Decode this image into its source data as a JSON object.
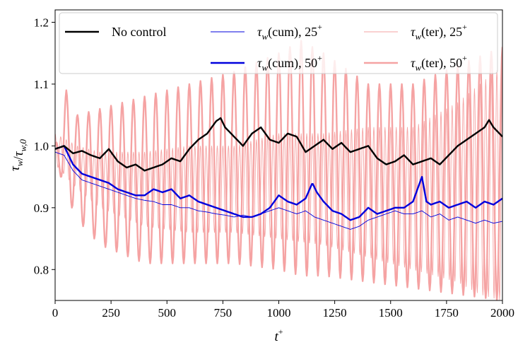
{
  "chart_data": {
    "type": "line",
    "xlabel": "t",
    "xlabel_sup": "+",
    "ylabel": "τ_w/τ_w,0",
    "xlim": [
      0,
      2000
    ],
    "ylim": [
      0.75,
      1.22
    ],
    "x_ticks": [
      0,
      250,
      500,
      750,
      1000,
      1250,
      1500,
      1750,
      2000
    ],
    "x_tick_labels": [
      "0",
      "250",
      "500",
      "750",
      "1000",
      "1250",
      "1500",
      "1750",
      "2000"
    ],
    "y_ticks": [
      0.8,
      0.9,
      1.0,
      1.1,
      1.2
    ],
    "y_tick_labels": [
      "0.8",
      "0.9",
      "1.0",
      "1.1",
      "1.2"
    ],
    "grid": false,
    "legend_position": "top",
    "legend_columns": 3,
    "series": [
      {
        "key": "no_control",
        "legend_label": "No control",
        "color": "#000000",
        "linewidth": "thick",
        "x": [
          0,
          40,
          80,
          120,
          160,
          200,
          240,
          280,
          320,
          360,
          400,
          440,
          480,
          520,
          560,
          600,
          640,
          680,
          720,
          740,
          760,
          800,
          840,
          880,
          920,
          960,
          1000,
          1040,
          1080,
          1120,
          1160,
          1200,
          1240,
          1280,
          1320,
          1360,
          1400,
          1440,
          1480,
          1520,
          1560,
          1600,
          1640,
          1680,
          1720,
          1760,
          1800,
          1840,
          1880,
          1920,
          1940,
          1960,
          2000
        ],
        "values": [
          0.995,
          1.0,
          0.988,
          0.992,
          0.985,
          0.98,
          0.995,
          0.975,
          0.965,
          0.97,
          0.96,
          0.965,
          0.97,
          0.98,
          0.975,
          0.995,
          1.01,
          1.02,
          1.04,
          1.045,
          1.03,
          1.015,
          1.0,
          1.02,
          1.03,
          1.01,
          1.005,
          1.02,
          1.015,
          0.99,
          1.0,
          1.01,
          0.995,
          1.005,
          0.99,
          0.995,
          1.0,
          0.98,
          0.97,
          0.975,
          0.985,
          0.97,
          0.975,
          0.98,
          0.97,
          0.985,
          1.0,
          1.01,
          1.02,
          1.03,
          1.042,
          1.03,
          1.015
        ]
      },
      {
        "key": "cum25",
        "legend_label": "τ_w(cum), 25",
        "legend_sup": "+",
        "color": "#0000dd",
        "linewidth": "thin",
        "x": [
          0,
          40,
          80,
          120,
          160,
          200,
          240,
          280,
          320,
          360,
          400,
          440,
          480,
          520,
          560,
          600,
          640,
          680,
          720,
          760,
          800,
          840,
          880,
          920,
          960,
          1000,
          1040,
          1080,
          1120,
          1160,
          1200,
          1240,
          1280,
          1320,
          1360,
          1400,
          1440,
          1480,
          1520,
          1560,
          1600,
          1640,
          1680,
          1720,
          1760,
          1800,
          1840,
          1880,
          1920,
          1960,
          2000
        ],
        "values": [
          0.99,
          0.985,
          0.96,
          0.945,
          0.94,
          0.935,
          0.93,
          0.925,
          0.92,
          0.915,
          0.912,
          0.91,
          0.905,
          0.905,
          0.9,
          0.9,
          0.895,
          0.893,
          0.89,
          0.888,
          0.885,
          0.888,
          0.885,
          0.89,
          0.895,
          0.9,
          0.895,
          0.89,
          0.895,
          0.885,
          0.88,
          0.875,
          0.87,
          0.865,
          0.87,
          0.88,
          0.885,
          0.89,
          0.895,
          0.89,
          0.89,
          0.895,
          0.885,
          0.89,
          0.88,
          0.885,
          0.88,
          0.875,
          0.88,
          0.875,
          0.878
        ]
      },
      {
        "key": "cum50",
        "legend_label": "τ_w(cum), 50",
        "legend_sup": "+",
        "color": "#0000dd",
        "linewidth": "thick",
        "x": [
          0,
          40,
          80,
          120,
          160,
          200,
          240,
          280,
          320,
          360,
          400,
          440,
          480,
          520,
          560,
          600,
          640,
          680,
          720,
          760,
          800,
          840,
          880,
          920,
          960,
          1000,
          1040,
          1080,
          1120,
          1150,
          1170,
          1200,
          1240,
          1280,
          1320,
          1360,
          1400,
          1440,
          1480,
          1520,
          1560,
          1600,
          1640,
          1660,
          1680,
          1720,
          1760,
          1800,
          1840,
          1880,
          1920,
          1960,
          2000
        ],
        "values": [
          0.995,
          1.0,
          0.97,
          0.955,
          0.95,
          0.945,
          0.94,
          0.93,
          0.925,
          0.92,
          0.92,
          0.93,
          0.925,
          0.93,
          0.915,
          0.92,
          0.91,
          0.905,
          0.9,
          0.895,
          0.89,
          0.885,
          0.885,
          0.89,
          0.9,
          0.92,
          0.91,
          0.905,
          0.915,
          0.94,
          0.925,
          0.91,
          0.895,
          0.89,
          0.88,
          0.885,
          0.9,
          0.89,
          0.895,
          0.9,
          0.9,
          0.91,
          0.95,
          0.91,
          0.905,
          0.91,
          0.9,
          0.905,
          0.91,
          0.9,
          0.91,
          0.905,
          0.915
        ]
      },
      {
        "key": "ter25",
        "legend_label": "τ_w(ter), 25",
        "legend_sup": "+",
        "color": "#f5a3a3",
        "linewidth": "thin",
        "oscillating": true,
        "period": 25,
        "x_env": [
          0,
          100,
          200,
          400,
          600,
          800,
          1000,
          1200,
          1400,
          1600,
          1800,
          1900,
          2000
        ],
        "upper": [
          1.02,
          1.0,
          0.99,
          0.99,
          1.0,
          1.0,
          1.02,
          1.02,
          1.03,
          1.03,
          1.07,
          1.1,
          1.13
        ],
        "lower": [
          0.97,
          0.93,
          0.9,
          0.87,
          0.86,
          0.86,
          0.85,
          0.84,
          0.82,
          0.8,
          0.78,
          0.76,
          0.75
        ]
      },
      {
        "key": "ter50",
        "legend_label": "τ_w(ter), 50",
        "legend_sup": "+",
        "color": "#f5a3a3",
        "linewidth": "thick",
        "oscillating": true,
        "period": 50,
        "x_env": [
          0,
          50,
          100,
          200,
          400,
          600,
          800,
          1000,
          1100,
          1200,
          1400,
          1600,
          1800,
          2000
        ],
        "upper": [
          1.0,
          1.09,
          1.05,
          1.06,
          1.08,
          1.1,
          1.12,
          1.15,
          1.17,
          1.15,
          1.1,
          1.1,
          1.13,
          1.16
        ],
        "lower": [
          0.98,
          0.92,
          0.88,
          0.84,
          0.81,
          0.81,
          0.81,
          0.8,
          0.79,
          0.79,
          0.78,
          0.77,
          0.76,
          0.75
        ]
      }
    ]
  }
}
